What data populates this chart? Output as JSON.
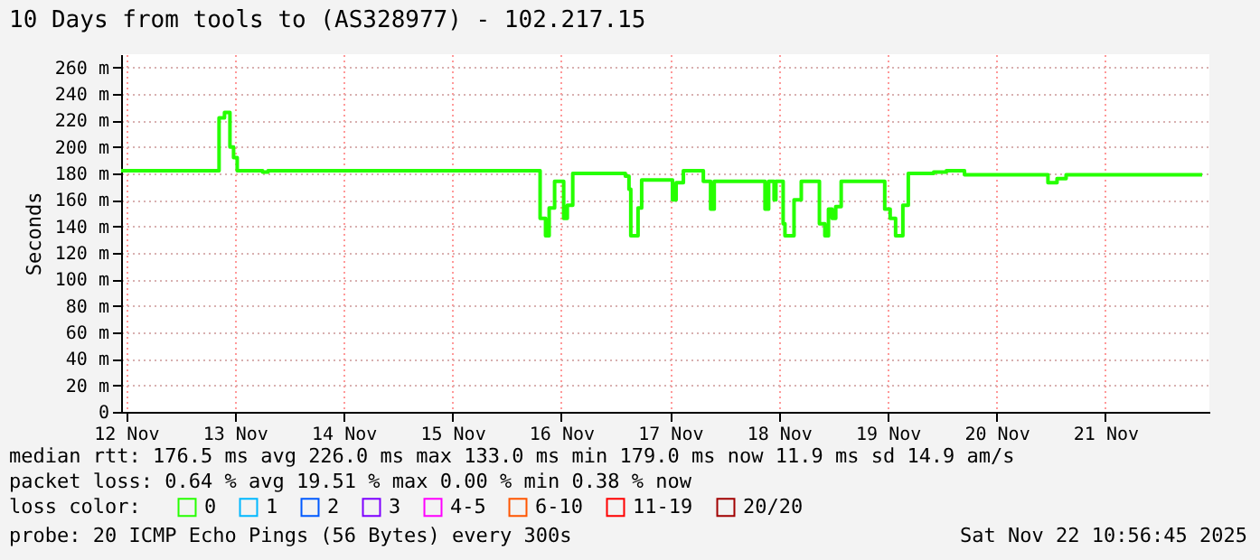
{
  "chart_data": {
    "type": "step",
    "title": "10 Days from tools to (AS328977) - 102.217.15",
    "ylabel": "Seconds",
    "xlim": [
      "2025-11-12T10:56",
      "2025-11-22T10:56"
    ],
    "xticks": [
      {
        "value": "2025-11-12T12:00",
        "label": "12 Nov"
      },
      {
        "value": "2025-11-13T12:00",
        "label": "13 Nov"
      },
      {
        "value": "2025-11-14T12:00",
        "label": "14 Nov"
      },
      {
        "value": "2025-11-15T12:00",
        "label": "15 Nov"
      },
      {
        "value": "2025-11-16T12:00",
        "label": "16 Nov"
      },
      {
        "value": "2025-11-17T12:00",
        "label": "17 Nov"
      },
      {
        "value": "2025-11-18T12:00",
        "label": "18 Nov"
      },
      {
        "value": "2025-11-19T12:00",
        "label": "19 Nov"
      },
      {
        "value": "2025-11-20T12:00",
        "label": "20 Nov"
      },
      {
        "value": "2025-11-21T12:00",
        "label": "21 Nov"
      }
    ],
    "ylim": [
      0,
      270
    ],
    "yticks": [
      0,
      {
        "value": 20,
        "label": "20 m"
      },
      {
        "value": 40,
        "label": "40 m"
      },
      {
        "value": 60,
        "label": "60 m"
      },
      {
        "value": 80,
        "label": "80 m"
      },
      {
        "value": 100,
        "label": "100 m"
      },
      {
        "value": 120,
        "label": "120 m"
      },
      {
        "value": 140,
        "label": "140 m"
      },
      {
        "value": 160,
        "label": "160 m"
      },
      {
        "value": 180,
        "label": "180 m"
      },
      {
        "value": 200,
        "label": "200 m"
      },
      {
        "value": 220,
        "label": "220 m"
      },
      {
        "value": 240,
        "label": "240 m"
      },
      {
        "value": 260,
        "label": "260 m"
      }
    ],
    "grid": true,
    "legend": "bottom",
    "legend_title": "loss color:",
    "series": [
      {
        "color": "#26ff00",
        "x": [
          "2025-11-12T10:56",
          "2025-11-13T08:32",
          "2025-11-13T09:44",
          "2025-11-13T10:56",
          "2025-11-13T11:44",
          "2025-11-13T12:32",
          "2025-11-13T18:08",
          "2025-11-13T19:20",
          "2025-11-16T07:20",
          "2025-11-16T08:32",
          "2025-11-16T09:20",
          "2025-11-16T10:32",
          "2025-11-16T12:32",
          "2025-11-16T13:20",
          "2025-11-16T14:32",
          "2025-11-17T02:08",
          "2025-11-17T02:56",
          "2025-11-17T03:20",
          "2025-11-17T04:56",
          "2025-11-17T05:44",
          "2025-11-17T12:32",
          "2025-11-17T13:20",
          "2025-11-17T14:56",
          "2025-11-17T19:20",
          "2025-11-17T20:56",
          "2025-11-17T21:44",
          "2025-11-18T08:56",
          "2025-11-18T09:44",
          "2025-11-18T10:56",
          "2025-11-18T11:20",
          "2025-11-18T12:56",
          "2025-11-18T13:20",
          "2025-11-18T15:20",
          "2025-11-18T16:56",
          "2025-11-18T20:56",
          "2025-11-18T22:08",
          "2025-11-18T22:56",
          "2025-11-18T23:44",
          "2025-11-19T00:32",
          "2025-11-19T01:44",
          "2025-11-19T11:20",
          "2025-11-19T12:32",
          "2025-11-19T13:44",
          "2025-11-19T15:20",
          "2025-11-19T16:32",
          "2025-11-19T22:08",
          "2025-11-20T00:56",
          "2025-11-20T04:56",
          "2025-11-20T23:20",
          "2025-11-21T01:20",
          "2025-11-21T03:20",
          "2025-11-22T09:20"
        ],
        "values": [
          182,
          222,
          226,
          200,
          192,
          182,
          181,
          182,
          146,
          133,
          154,
          174,
          146,
          156,
          180,
          178,
          168,
          133,
          154,
          175,
          160,
          173,
          182,
          174,
          153,
          174,
          153,
          174,
          160,
          174,
          142,
          133,
          160,
          174,
          142,
          133,
          153,
          146,
          155,
          174,
          153,
          146,
          133,
          156,
          180,
          181,
          182,
          179,
          173,
          176,
          179,
          179
        ]
      },
      {
        "name": "0",
        "color": "#26ff00"
      },
      {
        "name": "1",
        "color": "#00b8ff"
      },
      {
        "name": "2",
        "color": "#0059ff"
      },
      {
        "name": "3",
        "color": "#7e00ff"
      },
      {
        "name": "4-5",
        "color": "#ff00ff"
      },
      {
        "name": "6-10",
        "color": "#ff5500"
      },
      {
        "name": "11-19",
        "color": "#ff0000"
      },
      {
        "name": "20/20",
        "color": "#a10000"
      }
    ],
    "annotations": [
      "median rtt:  176.5 ms avg  226.0 ms max  133.0 ms min  179.0 ms now  11.9 ms sd  14.9   am/s",
      "packet loss: 0.64 % avg  19.51 % max  0.00 % min  0.38 % now",
      "probe:       20 ICMP Echo Pings (56 Bytes) every 300s",
      "Sat Nov 22 10:56:45 2025"
    ]
  }
}
